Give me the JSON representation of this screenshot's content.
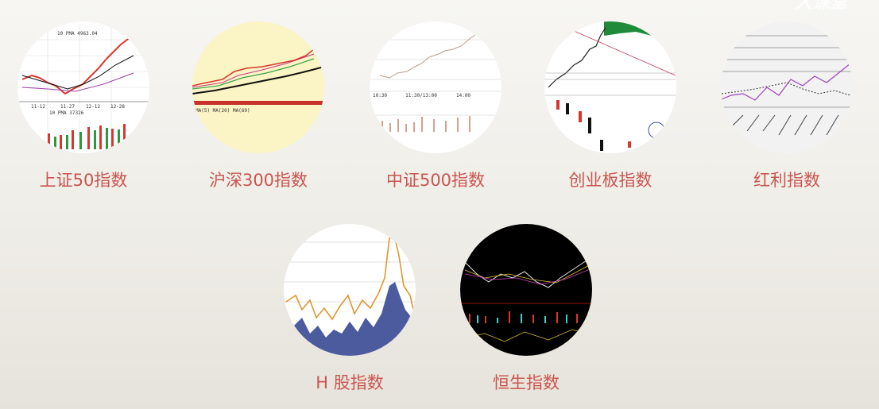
{
  "watermark": "大课堂",
  "indices": [
    {
      "label": "上证50指数",
      "thumbnail_texts": [
        "10 PMA 4963.04",
        "11-12",
        "11-27",
        "12-12",
        "12-28",
        "10 PMA 37326"
      ]
    },
    {
      "label": "沪深300指数"
    },
    {
      "label": "中证500指数",
      "thumbnail_texts": [
        "10:30",
        "11:30/13:00",
        "14:00"
      ]
    },
    {
      "label": "创业板指数"
    },
    {
      "label": "红利指数"
    },
    {
      "label": "H 股指数"
    },
    {
      "label": "恒生指数"
    }
  ]
}
